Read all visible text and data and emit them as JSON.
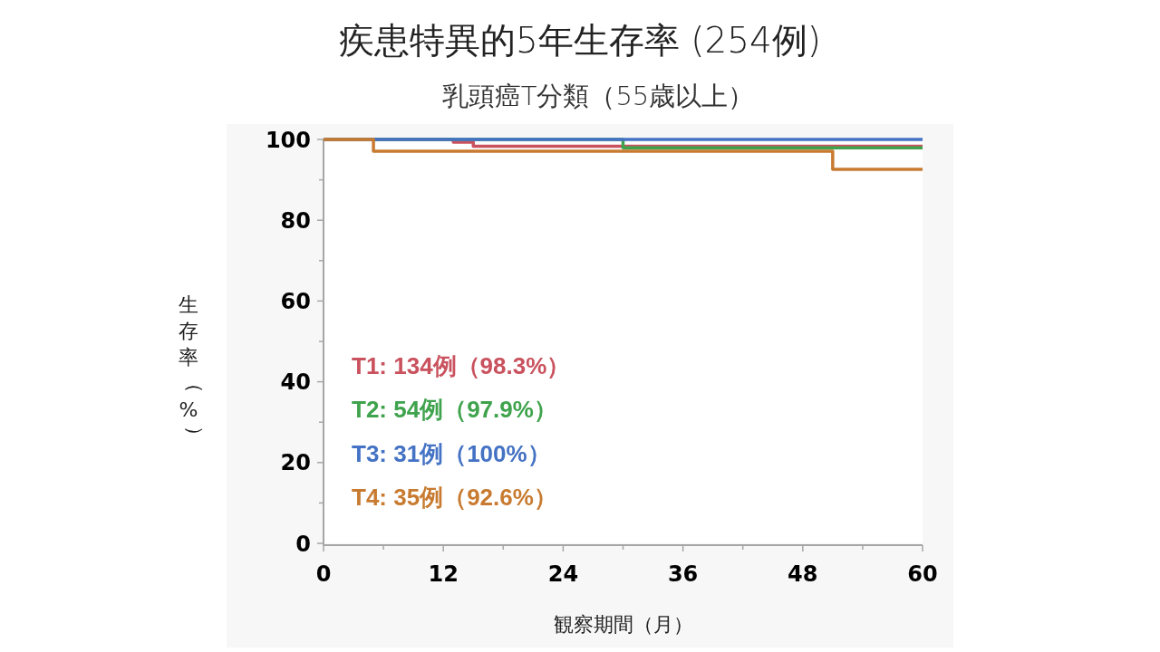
{
  "chart_data": {
    "type": "step",
    "title": "疾患特異的5年生存率 (254例)",
    "subtitle": "乳頭癌T分類（55歳以上）",
    "xlabel": "観察期間（月）",
    "ylabel": "生存率（%）",
    "xlim": [
      0,
      60
    ],
    "ylim": [
      0,
      100
    ],
    "xticks": [
      0,
      {
        "value": 6,
        "label": null
      },
      12,
      {
        "value": 18,
        "label": null
      },
      24,
      {
        "value": 30,
        "label": null
      },
      36,
      {
        "value": 42,
        "label": null
      },
      48,
      {
        "value": 54,
        "label": null
      },
      60
    ],
    "yticks": [
      0,
      {
        "value": 10,
        "label": null
      },
      20,
      {
        "value": 30,
        "label": null
      },
      40,
      {
        "value": 50,
        "label": null
      },
      60,
      {
        "value": 70,
        "label": null
      },
      80,
      {
        "value": 90,
        "label": null
      },
      100
    ],
    "legend": "bottom left",
    "line_style": "solid",
    "series": [
      {
        "name": "T1: 134例（98.3%）",
        "color": "#c9525e",
        "x": [
          0,
          13,
          15,
          60
        ],
        "values": [
          100,
          99.3,
          98.3,
          98.3
        ]
      },
      {
        "name": "T2: 54例（97.9%）",
        "color": "#3fa34d",
        "x": [
          0,
          30,
          60
        ],
        "values": [
          100,
          97.9,
          97.9
        ]
      },
      {
        "name": "T3: 31例（100%）",
        "color": "#4472c4",
        "x": [
          0,
          60
        ],
        "values": [
          100,
          100
        ]
      },
      {
        "name": "T4: 35例（92.6%）",
        "color": "#c87b30",
        "x": [
          0,
          5,
          51,
          60
        ],
        "values": [
          100,
          97.1,
          92.6,
          92.6
        ]
      }
    ]
  }
}
